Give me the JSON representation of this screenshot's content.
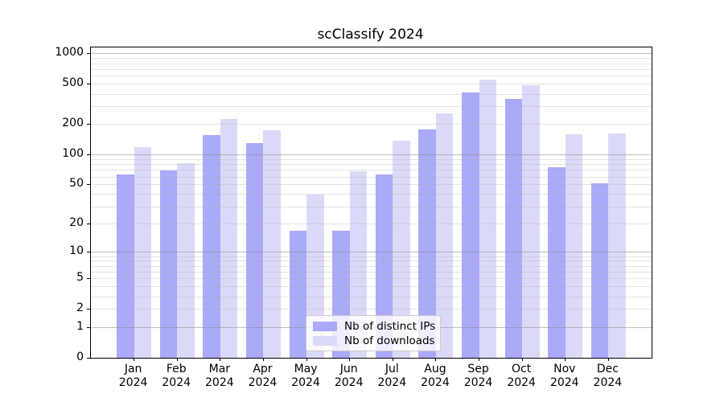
{
  "title": "scClassify 2024",
  "colors": {
    "ips_bar": "#aaaaf8",
    "downloads_bar": "#dadaf8",
    "grid_major": "#8a8a8a",
    "grid_minor": "#aaaaaa",
    "axis": "#000000",
    "legend_border": "#cccccc"
  },
  "legend": {
    "items": [
      {
        "label": "Nb of distinct IPs",
        "series": "ips"
      },
      {
        "label": "Nb of downloads",
        "series": "downloads"
      }
    ],
    "position": "lower center"
  },
  "chart_data": {
    "type": "bar",
    "title": "scClassify 2024",
    "xlabel": "",
    "ylabel": "",
    "y_scale": "log1p",
    "ylim": [
      0,
      1170
    ],
    "grid": true,
    "legend_position": "lower center",
    "y_ticks": [
      0,
      1,
      2,
      5,
      10,
      20,
      50,
      100,
      200,
      500,
      1000
    ],
    "categories": [
      "Jan 2024",
      "Feb 2024",
      "Mar 2024",
      "Apr 2024",
      "May 2024",
      "Jun 2024",
      "Jul 2024",
      "Aug 2024",
      "Sep 2024",
      "Oct 2024",
      "Nov 2024",
      "Dec 2024"
    ],
    "series": [
      {
        "name": "Nb of distinct IPs",
        "color": "#aaaaf8",
        "values": [
          64,
          70,
          158,
          131,
          17,
          17,
          64,
          179,
          412,
          360,
          75,
          52
        ]
      },
      {
        "name": "Nb of downloads",
        "color": "#dadaf8",
        "values": [
          118,
          82,
          228,
          176,
          40,
          69,
          139,
          256,
          553,
          489,
          160,
          164
        ]
      }
    ]
  }
}
